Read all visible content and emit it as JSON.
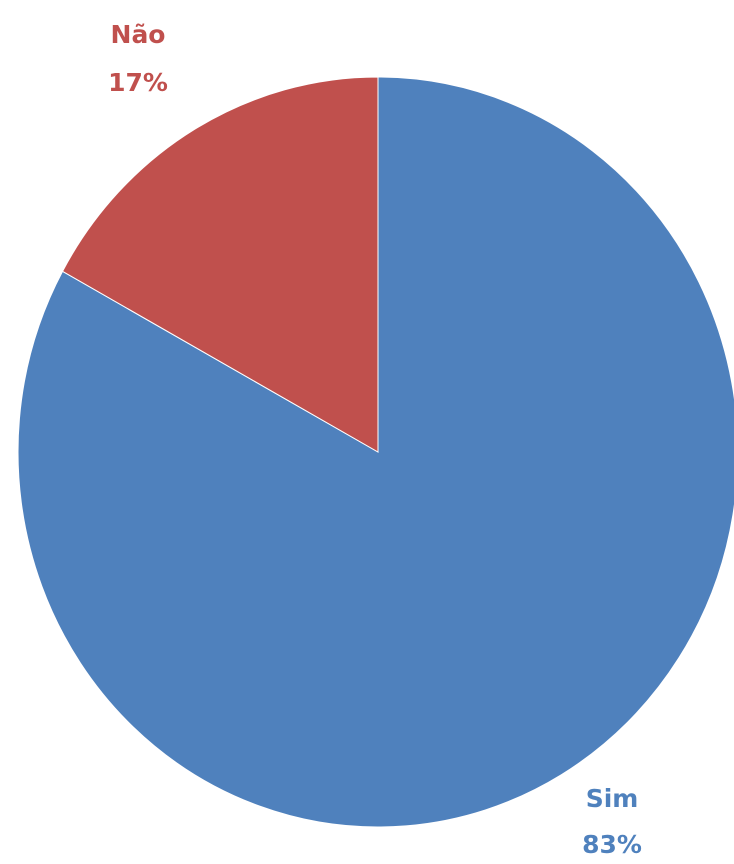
{
  "chart_data": {
    "type": "pie",
    "categories": [
      "Sim",
      "Não"
    ],
    "values": [
      83,
      17
    ],
    "value_labels": [
      "83%",
      "17%"
    ],
    "colors": [
      "#4f81bd",
      "#c0504d"
    ]
  }
}
